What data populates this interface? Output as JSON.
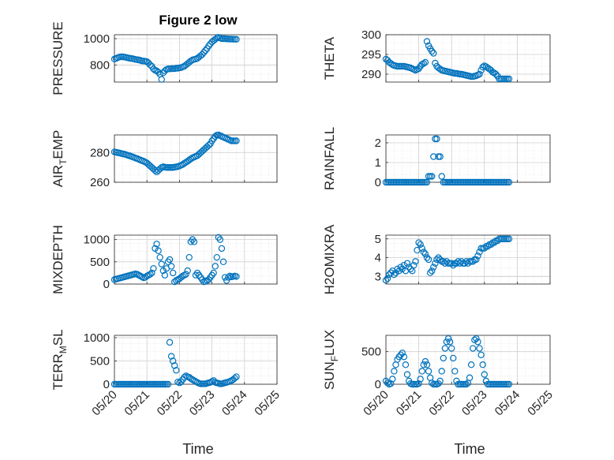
{
  "figure_title": "Figure 2 low",
  "x_label": "Time",
  "colors": {
    "marker": "#0072bd",
    "axis": "#262626",
    "grid": "#dcdcdc"
  },
  "chart_data": [
    {
      "type": "scatter",
      "ylabel": "PRESSURE",
      "xticks": [
        "05/20",
        "05/21",
        "05/22",
        "05/23",
        "05/24",
        "05/25"
      ],
      "show_xticks": false,
      "xlim": [
        0,
        5
      ],
      "ylim": [
        670,
        1030
      ],
      "yticks": [
        800,
        1000
      ],
      "x": [
        0,
        0.05,
        0.1,
        0.15,
        0.2,
        0.25,
        0.3,
        0.35,
        0.4,
        0.45,
        0.5,
        0.55,
        0.6,
        0.65,
        0.7,
        0.75,
        0.8,
        0.85,
        0.9,
        0.95,
        1,
        1.05,
        1.1,
        1.15,
        1.2,
        1.25,
        1.3,
        1.35,
        1.4,
        1.45,
        1.5,
        1.55,
        1.6,
        1.65,
        1.7,
        1.75,
        1.8,
        1.85,
        1.9,
        1.95,
        2,
        2.05,
        2.1,
        2.15,
        2.2,
        2.25,
        2.3,
        2.35,
        2.4,
        2.45,
        2.5,
        2.55,
        2.6,
        2.65,
        2.7,
        2.75,
        2.8,
        2.85,
        2.9,
        2.95,
        3,
        3.05,
        3.1,
        3.15,
        3.2,
        3.25,
        3.3,
        3.35,
        3.4,
        3.45,
        3.5,
        3.55,
        3.6,
        3.65,
        3.7,
        3.75
      ],
      "y": [
        845,
        850,
        855,
        860,
        862,
        862,
        860,
        858,
        855,
        852,
        850,
        848,
        845,
        842,
        840,
        838,
        835,
        830,
        830,
        828,
        825,
        815,
        800,
        790,
        770,
        760,
        755,
        745,
        730,
        690,
        740,
        755,
        765,
        770,
        770,
        772,
        772,
        772,
        775,
        775,
        778,
        780,
        785,
        790,
        800,
        810,
        820,
        830,
        838,
        842,
        845,
        850,
        860,
        870,
        880,
        895,
        910,
        925,
        945,
        960,
        975,
        985,
        995,
        1005,
        1010,
        1005,
        1000,
        1000,
        1000,
        998,
        998,
        997,
        997,
        996,
        996,
        995
      ]
    },
    {
      "type": "scatter",
      "ylabel": "THETA",
      "xticks": [
        "05/20",
        "05/21",
        "05/22",
        "05/23",
        "05/24",
        "05/25"
      ],
      "show_xticks": false,
      "xlim": [
        0,
        5
      ],
      "ylim": [
        288,
        300
      ],
      "yticks": [
        290,
        295,
        300
      ],
      "x": [
        0,
        0.05,
        0.1,
        0.15,
        0.2,
        0.25,
        0.3,
        0.35,
        0.4,
        0.45,
        0.5,
        0.55,
        0.6,
        0.65,
        0.7,
        0.75,
        0.8,
        0.85,
        0.9,
        0.95,
        1,
        1.05,
        1.1,
        1.15,
        1.2,
        1.25,
        1.3,
        1.35,
        1.4,
        1.45,
        1.5,
        1.55,
        1.6,
        1.65,
        1.7,
        1.75,
        1.8,
        1.85,
        1.9,
        1.95,
        2,
        2.05,
        2.1,
        2.15,
        2.2,
        2.25,
        2.3,
        2.35,
        2.4,
        2.45,
        2.5,
        2.55,
        2.6,
        2.65,
        2.7,
        2.75,
        2.8,
        2.85,
        2.9,
        2.95,
        3,
        3.05,
        3.1,
        3.15,
        3.2,
        3.25,
        3.3,
        3.35,
        3.4,
        3.45,
        3.5,
        3.55,
        3.6,
        3.65,
        3.7,
        3.75
      ],
      "y": [
        293.8,
        293.5,
        293,
        292.7,
        292.4,
        292.2,
        292.1,
        292,
        292,
        292,
        292,
        292,
        291.9,
        291.8,
        291.7,
        291.6,
        291.4,
        291.2,
        291,
        291.2,
        291.4,
        292,
        292.5,
        292.7,
        293,
        298.3,
        297.2,
        296.5,
        295.8,
        295.3,
        292.8,
        292,
        291.6,
        291.3,
        291,
        290.9,
        290.8,
        290.7,
        290.6,
        290.5,
        290.4,
        290.3,
        290.2,
        290.2,
        290.1,
        290,
        290,
        289.9,
        289.8,
        289.7,
        289.6,
        289.5,
        289.4,
        289.4,
        289.5,
        289.6,
        289.8,
        290,
        291,
        291.8,
        292.1,
        291.9,
        291.6,
        291.3,
        291,
        290.5,
        290.3,
        290,
        289.5,
        288.8,
        288.8,
        288.8,
        288.8,
        288.8,
        288.8,
        288.8
      ]
    },
    {
      "type": "scatter",
      "ylabel": "AIR_TEMP",
      "xticks": [
        "05/20",
        "05/21",
        "05/22",
        "05/23",
        "05/24",
        "05/25"
      ],
      "show_xticks": false,
      "xlim": [
        0,
        5
      ],
      "ylim": [
        260,
        292
      ],
      "yticks": [
        260,
        280
      ],
      "x": [
        0,
        0.05,
        0.1,
        0.15,
        0.2,
        0.25,
        0.3,
        0.35,
        0.4,
        0.45,
        0.5,
        0.55,
        0.6,
        0.65,
        0.7,
        0.75,
        0.8,
        0.85,
        0.9,
        0.95,
        1,
        1.05,
        1.1,
        1.15,
        1.2,
        1.25,
        1.3,
        1.35,
        1.4,
        1.45,
        1.5,
        1.55,
        1.6,
        1.65,
        1.7,
        1.75,
        1.8,
        1.85,
        1.9,
        1.95,
        2,
        2.05,
        2.1,
        2.15,
        2.2,
        2.25,
        2.3,
        2.35,
        2.4,
        2.45,
        2.5,
        2.55,
        2.6,
        2.65,
        2.7,
        2.75,
        2.8,
        2.85,
        2.9,
        2.95,
        3,
        3.05,
        3.1,
        3.15,
        3.2,
        3.25,
        3.3,
        3.35,
        3.4,
        3.45,
        3.5,
        3.55,
        3.6,
        3.65,
        3.7,
        3.75
      ],
      "y": [
        280.5,
        280.3,
        280,
        279.8,
        279.5,
        279.2,
        279,
        278.7,
        278.3,
        278,
        277.6,
        277.2,
        276.8,
        276.3,
        276,
        275.5,
        275,
        274.6,
        274.2,
        273.6,
        273,
        272,
        271,
        270,
        269,
        268,
        267,
        268,
        269,
        270,
        270.5,
        270.2,
        270,
        270,
        270,
        270,
        270,
        270.2,
        270.4,
        270.6,
        271,
        271.5,
        272,
        272.8,
        273.5,
        274.2,
        275,
        275.8,
        276.5,
        277,
        277.5,
        278,
        279,
        280,
        281,
        282,
        283,
        284,
        285,
        286,
        288,
        289.5,
        291,
        291.8,
        292,
        291.5,
        291,
        290.5,
        290,
        289.5,
        289,
        288.5,
        288,
        288,
        288,
        288
      ]
    },
    {
      "type": "scatter",
      "ylabel": "RAINFALL",
      "xticks": [
        "05/20",
        "05/21",
        "05/22",
        "05/23",
        "05/24",
        "05/25"
      ],
      "show_xticks": false,
      "xlim": [
        0,
        5
      ],
      "ylim": [
        0,
        2.4
      ],
      "yticks": [
        0,
        1,
        2
      ],
      "x": [
        0,
        0.05,
        0.1,
        0.15,
        0.2,
        0.25,
        0.3,
        0.35,
        0.4,
        0.45,
        0.5,
        0.55,
        0.6,
        0.65,
        0.7,
        0.75,
        0.8,
        0.85,
        0.9,
        0.95,
        1,
        1.05,
        1.1,
        1.15,
        1.2,
        1.25,
        1.3,
        1.35,
        1.4,
        1.45,
        1.5,
        1.55,
        1.6,
        1.65,
        1.7,
        1.75,
        1.8,
        1.85,
        1.9,
        1.95,
        2,
        2.05,
        2.1,
        2.15,
        2.2,
        2.25,
        2.3,
        2.35,
        2.4,
        2.45,
        2.5,
        2.55,
        2.6,
        2.65,
        2.7,
        2.75,
        2.8,
        2.85,
        2.9,
        2.95,
        3,
        3.05,
        3.1,
        3.15,
        3.2,
        3.25,
        3.3,
        3.35,
        3.4,
        3.45,
        3.5,
        3.55,
        3.6,
        3.65,
        3.7,
        3.75
      ],
      "y": [
        0,
        0,
        0,
        0,
        0,
        0,
        0,
        0,
        0,
        0,
        0,
        0,
        0,
        0,
        0,
        0,
        0,
        0,
        0,
        0,
        0,
        0,
        0,
        0,
        0,
        0,
        0.3,
        0.3,
        0.3,
        1.3,
        2.2,
        2.2,
        1.3,
        1.3,
        0.3,
        0,
        0,
        0,
        0,
        0,
        0,
        0,
        0,
        0,
        0,
        0,
        0,
        0,
        0,
        0,
        0,
        0,
        0,
        0,
        0,
        0,
        0,
        0,
        0,
        0,
        0,
        0,
        0,
        0,
        0,
        0,
        0,
        0,
        0,
        0,
        0,
        0,
        0,
        0,
        0,
        0
      ]
    },
    {
      "type": "scatter",
      "ylabel": "MIXDEPTH",
      "xticks": [
        "05/20",
        "05/21",
        "05/22",
        "05/23",
        "05/24",
        "05/25"
      ],
      "show_xticks": false,
      "xlim": [
        0,
        5
      ],
      "ylim": [
        0,
        1100
      ],
      "yticks": [
        0,
        500,
        1000
      ],
      "x": [
        0,
        0.05,
        0.1,
        0.15,
        0.2,
        0.25,
        0.3,
        0.35,
        0.4,
        0.45,
        0.5,
        0.55,
        0.6,
        0.65,
        0.7,
        0.75,
        0.8,
        0.85,
        0.9,
        0.95,
        1,
        1.05,
        1.1,
        1.15,
        1.2,
        1.25,
        1.3,
        1.35,
        1.4,
        1.45,
        1.5,
        1.55,
        1.6,
        1.65,
        1.7,
        1.75,
        1.8,
        1.85,
        1.9,
        1.95,
        2,
        2.05,
        2.1,
        2.15,
        2.2,
        2.25,
        2.3,
        2.35,
        2.4,
        2.45,
        2.5,
        2.55,
        2.6,
        2.65,
        2.7,
        2.75,
        2.8,
        2.85,
        2.9,
        2.95,
        3,
        3.05,
        3.1,
        3.15,
        3.2,
        3.25,
        3.3,
        3.35,
        3.4,
        3.45,
        3.5,
        3.55,
        3.6,
        3.65,
        3.7,
        3.75
      ],
      "y": [
        100,
        110,
        120,
        130,
        140,
        150,
        160,
        170,
        180,
        190,
        200,
        210,
        220,
        230,
        220,
        200,
        180,
        160,
        140,
        150,
        180,
        200,
        220,
        250,
        350,
        800,
        900,
        750,
        600,
        450,
        300,
        200,
        350,
        500,
        550,
        400,
        250,
        50,
        80,
        100,
        120,
        150,
        180,
        200,
        220,
        300,
        600,
        950,
        1000,
        950,
        200,
        250,
        200,
        150,
        100,
        50,
        60,
        80,
        100,
        150,
        200,
        250,
        400,
        600,
        1050,
        1000,
        800,
        500,
        150,
        80,
        150,
        180,
        160,
        170,
        180,
        170
      ]
    },
    {
      "type": "scatter",
      "ylabel": "H2OMIXRA",
      "xticks": [
        "05/20",
        "05/21",
        "05/22",
        "05/23",
        "05/24",
        "05/25"
      ],
      "show_xticks": false,
      "xlim": [
        0,
        5
      ],
      "ylim": [
        2.6,
        5.2
      ],
      "yticks": [
        3,
        4,
        5
      ],
      "x": [
        0,
        0.05,
        0.1,
        0.15,
        0.2,
        0.25,
        0.3,
        0.35,
        0.4,
        0.45,
        0.5,
        0.55,
        0.6,
        0.65,
        0.7,
        0.75,
        0.8,
        0.85,
        0.9,
        0.95,
        1,
        1.05,
        1.1,
        1.15,
        1.2,
        1.25,
        1.3,
        1.35,
        1.4,
        1.45,
        1.5,
        1.55,
        1.6,
        1.65,
        1.7,
        1.75,
        1.8,
        1.85,
        1.9,
        1.95,
        2,
        2.05,
        2.1,
        2.15,
        2.2,
        2.25,
        2.3,
        2.35,
        2.4,
        2.45,
        2.5,
        2.55,
        2.6,
        2.65,
        2.7,
        2.75,
        2.8,
        2.85,
        2.9,
        2.95,
        3,
        3.05,
        3.1,
        3.15,
        3.2,
        3.25,
        3.3,
        3.35,
        3.4,
        3.45,
        3.5,
        3.55,
        3.6,
        3.65,
        3.7,
        3.75
      ],
      "y": [
        2.8,
        2.9,
        3.1,
        3.2,
        3.3,
        3.1,
        3.2,
        3.4,
        3.3,
        3.5,
        3.4,
        3.6,
        3.3,
        3.7,
        3.5,
        3.4,
        3.3,
        3.6,
        3.8,
        4.4,
        4.8,
        4.7,
        4.5,
        4.3,
        4.2,
        4,
        3.9,
        3.2,
        3.3,
        3.5,
        3.7,
        3.9,
        4,
        3.9,
        3.8,
        3.8,
        3.7,
        3.8,
        3.7,
        3.7,
        3.7,
        3.6,
        3.7,
        3.7,
        3.8,
        3.7,
        3.8,
        3.7,
        3.7,
        3.8,
        3.7,
        3.8,
        3.8,
        3.8,
        3.9,
        3.9,
        4.1,
        4.3,
        4.5,
        4.5,
        4.5,
        4.6,
        4.6,
        4.7,
        4.7,
        4.8,
        4.8,
        4.9,
        4.9,
        5,
        5,
        5,
        5,
        5,
        5,
        5
      ]
    },
    {
      "type": "scatter",
      "ylabel": "TERR_MSL",
      "xticks": [
        "05/20",
        "05/21",
        "05/22",
        "05/23",
        "05/24",
        "05/25"
      ],
      "show_xticks": true,
      "xlim": [
        0,
        5
      ],
      "ylim": [
        0,
        1050
      ],
      "yticks": [
        0,
        500,
        1000
      ],
      "x": [
        0,
        0.05,
        0.1,
        0.15,
        0.2,
        0.25,
        0.3,
        0.35,
        0.4,
        0.45,
        0.5,
        0.55,
        0.6,
        0.65,
        0.7,
        0.75,
        0.8,
        0.85,
        0.9,
        0.95,
        1,
        1.05,
        1.1,
        1.15,
        1.2,
        1.25,
        1.3,
        1.35,
        1.4,
        1.45,
        1.5,
        1.55,
        1.6,
        1.65,
        1.7,
        1.75,
        1.8,
        1.85,
        1.9,
        1.95,
        2,
        2.05,
        2.1,
        2.15,
        2.2,
        2.25,
        2.3,
        2.35,
        2.4,
        2.45,
        2.5,
        2.55,
        2.6,
        2.65,
        2.7,
        2.75,
        2.8,
        2.85,
        2.9,
        2.95,
        3,
        3.05,
        3.1,
        3.15,
        3.2,
        3.25,
        3.3,
        3.35,
        3.4,
        3.45,
        3.5,
        3.55,
        3.6,
        3.65,
        3.7,
        3.75
      ],
      "y": [
        0,
        0,
        0,
        0,
        0,
        0,
        0,
        0,
        0,
        0,
        0,
        0,
        0,
        0,
        0,
        0,
        0,
        0,
        0,
        0,
        0,
        0,
        0,
        0,
        0,
        0,
        0,
        0,
        0,
        0,
        0,
        0,
        0,
        0,
        900,
        600,
        500,
        400,
        300,
        50,
        30,
        50,
        100,
        150,
        180,
        160,
        150,
        120,
        100,
        80,
        60,
        40,
        20,
        10,
        10,
        10,
        10,
        20,
        30,
        40,
        60,
        80,
        40,
        30,
        20,
        10,
        10,
        20,
        30,
        40,
        50,
        60,
        80,
        100,
        130,
        160
      ]
    },
    {
      "type": "scatter",
      "ylabel": "SUN_FLUX",
      "xticks": [
        "05/20",
        "05/21",
        "05/22",
        "05/23",
        "05/24",
        "05/25"
      ],
      "show_xticks": true,
      "xlim": [
        0,
        5
      ],
      "ylim": [
        0,
        750
      ],
      "yticks": [
        0,
        500
      ],
      "x": [
        0,
        0.05,
        0.1,
        0.15,
        0.2,
        0.25,
        0.3,
        0.35,
        0.4,
        0.45,
        0.5,
        0.55,
        0.6,
        0.65,
        0.7,
        0.75,
        0.8,
        0.85,
        0.9,
        0.95,
        1,
        1.05,
        1.1,
        1.15,
        1.2,
        1.25,
        1.3,
        1.35,
        1.4,
        1.45,
        1.5,
        1.55,
        1.6,
        1.65,
        1.7,
        1.75,
        1.8,
        1.85,
        1.9,
        1.95,
        2,
        2.05,
        2.1,
        2.15,
        2.2,
        2.25,
        2.3,
        2.35,
        2.4,
        2.45,
        2.5,
        2.55,
        2.6,
        2.65,
        2.7,
        2.75,
        2.8,
        2.85,
        2.9,
        2.95,
        3,
        3.05,
        3.1,
        3.15,
        3.2,
        3.25,
        3.3,
        3.35,
        3.4,
        3.45,
        3.5,
        3.55,
        3.6,
        3.65,
        3.7,
        3.75
      ],
      "y": [
        50,
        20,
        0,
        10,
        80,
        200,
        300,
        380,
        420,
        450,
        480,
        420,
        300,
        150,
        50,
        10,
        0,
        0,
        0,
        0,
        10,
        80,
        200,
        300,
        350,
        300,
        200,
        100,
        20,
        0,
        0,
        0,
        10,
        50,
        200,
        400,
        550,
        650,
        700,
        650,
        550,
        400,
        200,
        50,
        0,
        0,
        0,
        0,
        0,
        0,
        20,
        100,
        300,
        550,
        680,
        700,
        650,
        550,
        450,
        300,
        150,
        50,
        0,
        0,
        0,
        0,
        0,
        0,
        0,
        0,
        0,
        0,
        0,
        0,
        0,
        0
      ]
    }
  ]
}
